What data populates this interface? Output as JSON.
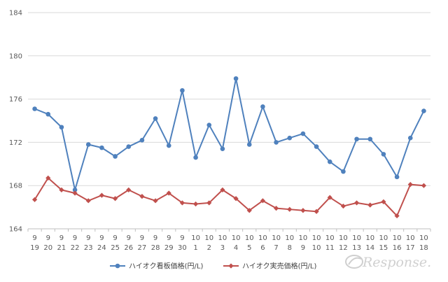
{
  "chart_data": {
    "type": "line",
    "title": "",
    "xlabel": "",
    "ylabel": "",
    "ylim": [
      164,
      184
    ],
    "yticks": [
      164,
      168,
      172,
      176,
      180,
      184
    ],
    "grid": true,
    "legend_position": "bottom",
    "categories": [
      [
        "9",
        "19"
      ],
      [
        "9",
        "20"
      ],
      [
        "9",
        "21"
      ],
      [
        "9",
        "22"
      ],
      [
        "9",
        "23"
      ],
      [
        "9",
        "24"
      ],
      [
        "9",
        "25"
      ],
      [
        "9",
        "26"
      ],
      [
        "9",
        "27"
      ],
      [
        "9",
        "28"
      ],
      [
        "9",
        "29"
      ],
      [
        "9",
        "30"
      ],
      [
        "10",
        "1"
      ],
      [
        "10",
        "2"
      ],
      [
        "10",
        "3"
      ],
      [
        "10",
        "4"
      ],
      [
        "10",
        "5"
      ],
      [
        "10",
        "6"
      ],
      [
        "10",
        "7"
      ],
      [
        "10",
        "8"
      ],
      [
        "10",
        "9"
      ],
      [
        "10",
        "10"
      ],
      [
        "10",
        "11"
      ],
      [
        "10",
        "12"
      ],
      [
        "10",
        "13"
      ],
      [
        "10",
        "14"
      ],
      [
        "10",
        "15"
      ],
      [
        "10",
        "16"
      ],
      [
        "10",
        "17"
      ],
      [
        "10",
        "18"
      ]
    ],
    "series": [
      {
        "name": "ハイオク看板価格(円/L)",
        "color": "#4F81BD",
        "marker": "circle",
        "values": [
          175.1,
          174.6,
          173.4,
          167.6,
          171.8,
          171.5,
          170.7,
          171.6,
          172.2,
          174.2,
          171.7,
          176.8,
          170.6,
          173.6,
          171.4,
          177.9,
          171.8,
          175.3,
          172.0,
          172.4,
          172.8,
          171.6,
          170.2,
          169.3,
          172.3,
          172.3,
          170.9,
          168.8,
          172.4,
          174.9
        ]
      },
      {
        "name": "ハイオク実売価格(円/L)",
        "color": "#C0504D",
        "marker": "diamond",
        "values": [
          166.7,
          168.7,
          167.6,
          167.3,
          166.6,
          167.1,
          166.8,
          167.6,
          167.0,
          166.6,
          167.3,
          166.4,
          166.3,
          166.4,
          167.6,
          166.8,
          165.7,
          166.6,
          165.9,
          165.8,
          165.7,
          165.6,
          166.9,
          166.1,
          166.4,
          166.2,
          166.5,
          165.2,
          168.1,
          168.0
        ]
      }
    ]
  },
  "watermark": {
    "text": "Response."
  }
}
